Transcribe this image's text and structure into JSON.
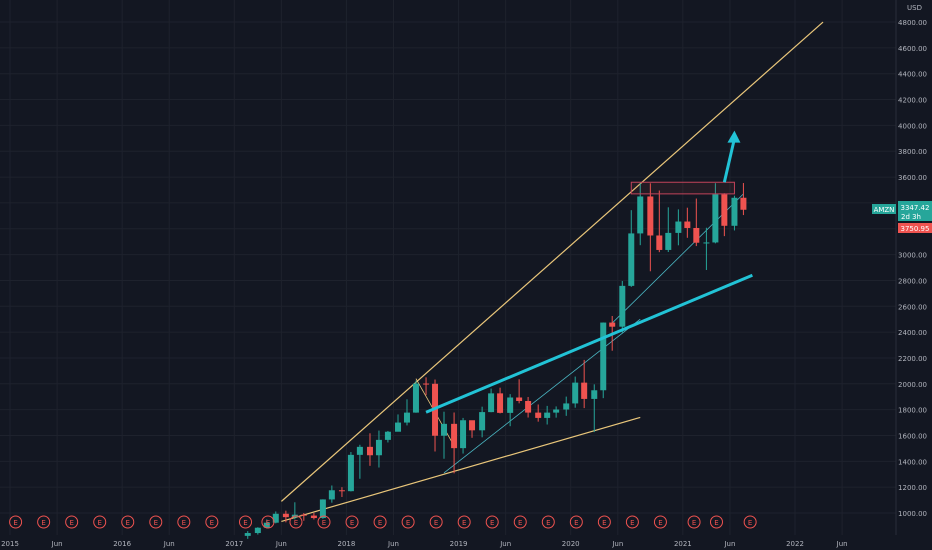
{
  "chart_data": {
    "type": "candlestick",
    "symbol": "AMZN",
    "interval": "1M",
    "currency": "USD",
    "price_last": "3347.42",
    "price_label_secondary": "2d 3h",
    "price_prev": "3750.95",
    "ylim": [
      900,
      4950
    ],
    "y_ticks": [
      1000,
      1200,
      1400,
      1600,
      1800,
      2000,
      2200,
      2400,
      2600,
      2800,
      3000,
      3200,
      3400,
      3600,
      3800,
      4000,
      4200,
      4400,
      4600,
      4800
    ],
    "y_tick_labels": [
      "1000.00",
      "1200.00",
      "1400.00",
      "1600.00",
      "1800.00",
      "2000.00",
      "2200.00",
      "2400.00",
      "2600.00",
      "2800.00",
      "3000.00",
      "3200.00",
      "3400.00",
      "3600.00",
      "3800.00",
      "4000.00",
      "4200.00",
      "4400.00",
      "4600.00",
      "4800.00"
    ],
    "x_ticks": [
      {
        "label": "2015",
        "t": 2015.0
      },
      {
        "label": "Jun",
        "t": 2015.42
      },
      {
        "label": "2016",
        "t": 2016.0
      },
      {
        "label": "Jun",
        "t": 2016.42
      },
      {
        "label": "2017",
        "t": 2017.0
      },
      {
        "label": "Jun",
        "t": 2017.42
      },
      {
        "label": "2018",
        "t": 2018.0
      },
      {
        "label": "Jun",
        "t": 2018.42
      },
      {
        "label": "2019",
        "t": 2019.0
      },
      {
        "label": "Jun",
        "t": 2019.42
      },
      {
        "label": "2020",
        "t": 2020.0
      },
      {
        "label": "Jun",
        "t": 2020.42
      },
      {
        "label": "2021",
        "t": 2021.0
      },
      {
        "label": "Jun",
        "t": 2021.42
      },
      {
        "label": "2022",
        "t": 2022.0
      },
      {
        "label": "Jun",
        "t": 2022.42
      }
    ],
    "candles": [
      {
        "t": 2017.12,
        "o": 823,
        "h": 860,
        "l": 800,
        "c": 845
      },
      {
        "t": 2017.21,
        "o": 845,
        "h": 890,
        "l": 833,
        "c": 886
      },
      {
        "t": 2017.29,
        "o": 886,
        "h": 950,
        "l": 880,
        "c": 925
      },
      {
        "t": 2017.37,
        "o": 925,
        "h": 1012,
        "l": 920,
        "c": 994
      },
      {
        "t": 2017.46,
        "o": 994,
        "h": 1018,
        "l": 928,
        "c": 968
      },
      {
        "t": 2017.54,
        "o": 968,
        "h": 1083,
        "l": 951,
        "c": 987
      },
      {
        "t": 2017.62,
        "o": 987,
        "h": 1000,
        "l": 940,
        "c": 980
      },
      {
        "t": 2017.71,
        "o": 980,
        "h": 1000,
        "l": 950,
        "c": 961
      },
      {
        "t": 2017.79,
        "o": 961,
        "h": 1106,
        "l": 955,
        "c": 1105
      },
      {
        "t": 2017.87,
        "o": 1105,
        "h": 1213,
        "l": 1080,
        "c": 1176
      },
      {
        "t": 2017.96,
        "o": 1176,
        "h": 1200,
        "l": 1124,
        "c": 1169
      },
      {
        "t": 2018.04,
        "o": 1169,
        "h": 1472,
        "l": 1167,
        "c": 1450
      },
      {
        "t": 2018.12,
        "o": 1450,
        "h": 1528,
        "l": 1265,
        "c": 1512
      },
      {
        "t": 2018.21,
        "o": 1512,
        "h": 1617,
        "l": 1365,
        "c": 1447
      },
      {
        "t": 2018.29,
        "o": 1447,
        "h": 1638,
        "l": 1352,
        "c": 1566
      },
      {
        "t": 2018.37,
        "o": 1566,
        "h": 1635,
        "l": 1546,
        "c": 1629
      },
      {
        "t": 2018.46,
        "o": 1629,
        "h": 1763,
        "l": 1635,
        "c": 1700
      },
      {
        "t": 2018.54,
        "o": 1700,
        "h": 1880,
        "l": 1678,
        "c": 1777
      },
      {
        "t": 2018.62,
        "o": 1777,
        "h": 2025,
        "l": 1776,
        "c": 2002
      },
      {
        "t": 2018.71,
        "o": 2002,
        "h": 2050,
        "l": 1912,
        "c": 2000
      },
      {
        "t": 2018.79,
        "o": 2000,
        "h": 2033,
        "l": 1476,
        "c": 1598
      },
      {
        "t": 2018.87,
        "o": 1598,
        "h": 1784,
        "l": 1420,
        "c": 1690
      },
      {
        "t": 2018.96,
        "o": 1690,
        "h": 1778,
        "l": 1307,
        "c": 1502
      },
      {
        "t": 2019.04,
        "o": 1502,
        "h": 1736,
        "l": 1460,
        "c": 1718
      },
      {
        "t": 2019.12,
        "o": 1718,
        "h": 1690,
        "l": 1582,
        "c": 1640
      },
      {
        "t": 2019.21,
        "o": 1640,
        "h": 1823,
        "l": 1586,
        "c": 1781
      },
      {
        "t": 2019.29,
        "o": 1781,
        "h": 1963,
        "l": 1780,
        "c": 1926
      },
      {
        "t": 2019.37,
        "o": 1926,
        "h": 1970,
        "l": 1771,
        "c": 1775
      },
      {
        "t": 2019.46,
        "o": 1775,
        "h": 1920,
        "l": 1672,
        "c": 1894
      },
      {
        "t": 2019.54,
        "o": 1894,
        "h": 2035,
        "l": 1849,
        "c": 1867
      },
      {
        "t": 2019.62,
        "o": 1867,
        "h": 1898,
        "l": 1739,
        "c": 1777
      },
      {
        "t": 2019.71,
        "o": 1777,
        "h": 1840,
        "l": 1707,
        "c": 1736
      },
      {
        "t": 2019.79,
        "o": 1736,
        "h": 1829,
        "l": 1685,
        "c": 1777
      },
      {
        "t": 2019.87,
        "o": 1777,
        "h": 1825,
        "l": 1738,
        "c": 1801
      },
      {
        "t": 2019.96,
        "o": 1801,
        "h": 1901,
        "l": 1752,
        "c": 1848
      },
      {
        "t": 2020.04,
        "o": 1848,
        "h": 2056,
        "l": 1815,
        "c": 2009
      },
      {
        "t": 2020.12,
        "o": 2009,
        "h": 2185,
        "l": 1812,
        "c": 1883
      },
      {
        "t": 2020.21,
        "o": 1883,
        "h": 1996,
        "l": 1626,
        "c": 1950
      },
      {
        "t": 2020.29,
        "o": 1950,
        "h": 2475,
        "l": 1889,
        "c": 2474
      },
      {
        "t": 2020.37,
        "o": 2474,
        "h": 2525,
        "l": 2256,
        "c": 2442
      },
      {
        "t": 2020.46,
        "o": 2442,
        "h": 2796,
        "l": 2396,
        "c": 2758
      },
      {
        "t": 2020.54,
        "o": 2758,
        "h": 3344,
        "l": 2750,
        "c": 3164
      },
      {
        "t": 2020.62,
        "o": 3164,
        "h": 3552,
        "l": 3073,
        "c": 3450
      },
      {
        "t": 2020.71,
        "o": 3450,
        "h": 3552,
        "l": 2871,
        "c": 3148
      },
      {
        "t": 2020.79,
        "o": 3148,
        "h": 3496,
        "l": 3019,
        "c": 3036
      },
      {
        "t": 2020.87,
        "o": 3036,
        "h": 3366,
        "l": 3020,
        "c": 3168
      },
      {
        "t": 2020.96,
        "o": 3168,
        "h": 3350,
        "l": 3072,
        "c": 3256
      },
      {
        "t": 2021.04,
        "o": 3256,
        "h": 3363,
        "l": 3130,
        "c": 3206
      },
      {
        "t": 2021.12,
        "o": 3206,
        "h": 3434,
        "l": 3066,
        "c": 3092
      },
      {
        "t": 2021.21,
        "o": 3092,
        "h": 3208,
        "l": 2881,
        "c": 3094
      },
      {
        "t": 2021.29,
        "o": 3094,
        "h": 3553,
        "l": 3087,
        "c": 3467
      },
      {
        "t": 2021.37,
        "o": 3467,
        "h": 3475,
        "l": 3143,
        "c": 3223
      },
      {
        "t": 2021.46,
        "o": 3223,
        "h": 3456,
        "l": 3187,
        "c": 3440
      },
      {
        "t": 2021.54,
        "o": 3440,
        "h": 3554,
        "l": 3306,
        "c": 3347
      }
    ],
    "annotations": {
      "upper_trend_line": [
        {
          "t": 2017.42,
          "p": 1090
        },
        {
          "t": 2022.25,
          "p": 4800
        }
      ],
      "lower_trend_line": [
        {
          "t": 2017.42,
          "p": 935
        },
        {
          "t": 2020.62,
          "p": 1740
        }
      ],
      "cyan_trend_line": [
        {
          "t": 2018.71,
          "p": 1780
        },
        {
          "t": 2021.62,
          "p": 2840
        }
      ],
      "resistance_box": {
        "t0": 2020.54,
        "t1": 2021.46,
        "p0": 3470,
        "p1": 3560
      },
      "arrow": [
        {
          "t": 2021.37,
          "p": 3560
        },
        {
          "t": 2021.46,
          "p": 3960
        }
      ],
      "thin_lines": [
        [
          {
            "t": 2018.87,
            "p": 1310
          },
          {
            "t": 2020.62,
            "p": 2500
          }
        ],
        [
          {
            "t": 2020.37,
            "p": 2470
          },
          {
            "t": 2021.54,
            "p": 3470
          }
        ],
        [
          {
            "t": 2018.62,
            "p": 2040
          },
          {
            "t": 2018.96,
            "p": 1520
          }
        ]
      ]
    },
    "earnings_markers": [
      2015.05,
      2015.3,
      2015.55,
      2015.8,
      2016.05,
      2016.3,
      2016.55,
      2016.8,
      2017.1,
      2017.3,
      2017.55,
      2017.8,
      2018.05,
      2018.3,
      2018.55,
      2018.8,
      2019.05,
      2019.3,
      2019.55,
      2019.8,
      2020.05,
      2020.3,
      2020.55,
      2020.8,
      2021.1,
      2021.3,
      2021.6
    ],
    "earnings_label": "E",
    "grid": true
  }
}
